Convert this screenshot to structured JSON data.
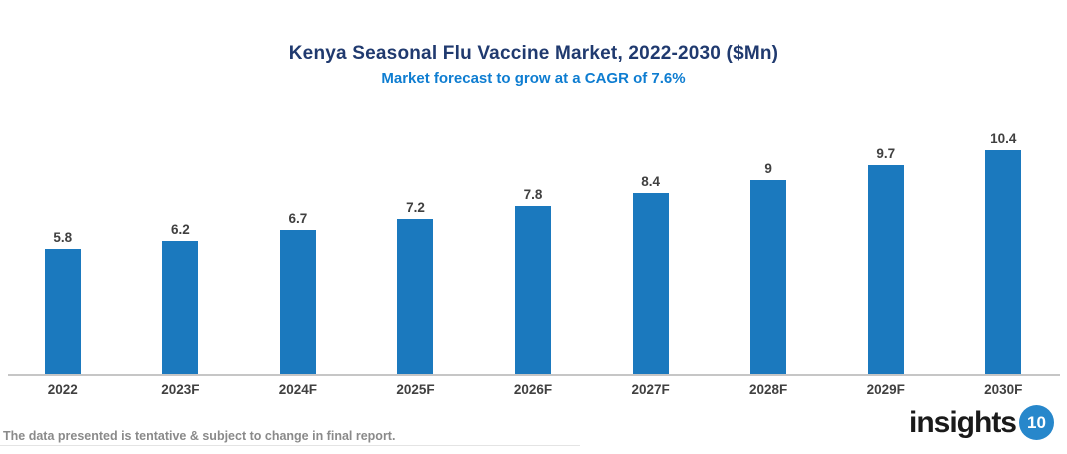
{
  "header": {
    "title": "Kenya Seasonal Flu Vaccine Market, 2022-2030 ($Mn)",
    "subtitle": "Market forecast to grow at a CAGR of 7.6%"
  },
  "chart_data": {
    "type": "bar",
    "title": "Kenya Seasonal Flu Vaccine Market, 2022-2030 ($Mn)",
    "subtitle": "Market forecast to grow at a CAGR of 7.6%",
    "categories": [
      "2022",
      "2023F",
      "2024F",
      "2025F",
      "2026F",
      "2027F",
      "2028F",
      "2029F",
      "2030F"
    ],
    "values": [
      5.8,
      6.2,
      6.7,
      7.2,
      7.8,
      8.4,
      9,
      9.7,
      10.4
    ],
    "value_labels": [
      "5.8",
      "6.2",
      "6.7",
      "7.2",
      "7.8",
      "8.4",
      "9",
      "9.7",
      "10.4"
    ],
    "xlabel": "",
    "ylabel": "",
    "ylim": [
      0,
      11.3
    ],
    "grid": false,
    "legend": false,
    "bar_color": "#1B79BE"
  },
  "footer": {
    "disclaimer": "The data presented is tentative & subject to change in final report.",
    "logo_text": "insights",
    "logo_badge": "10"
  },
  "colors": {
    "title": "#203A6F",
    "subtitle": "#0E7DD1",
    "bar": "#1B79BE",
    "data_label": "#404040",
    "axis_line": "#C6C6C6",
    "disclaimer_text": "#8A8A8A",
    "logo_badge_bg": "#2787CB"
  }
}
